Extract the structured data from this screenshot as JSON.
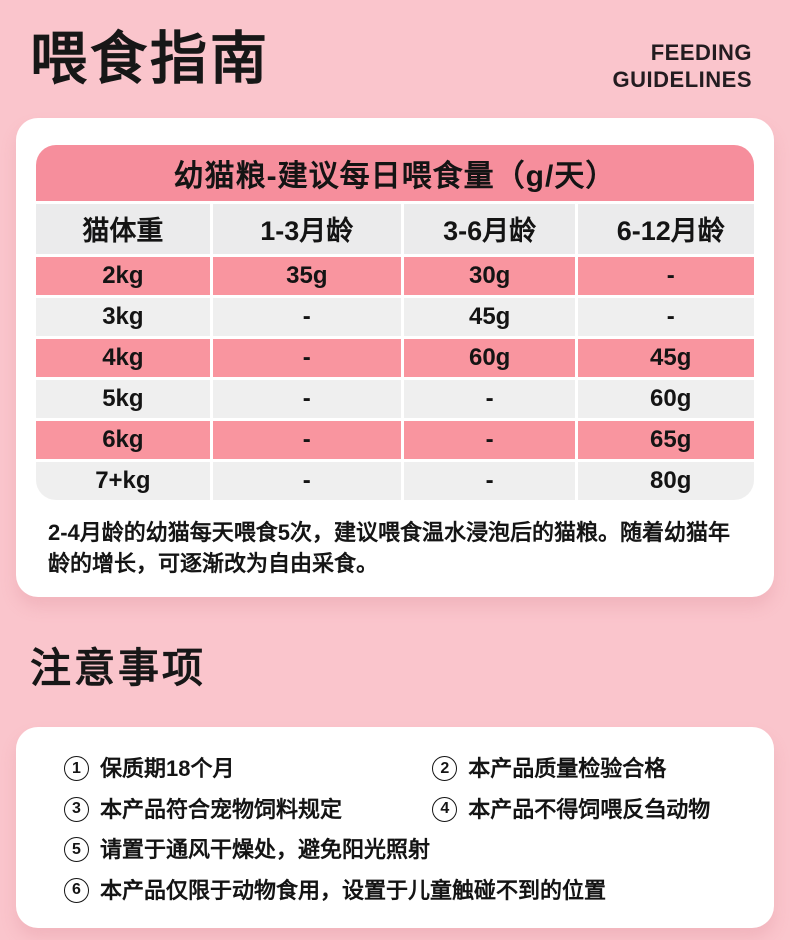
{
  "page": {
    "title": "喂食指南",
    "subtitle_en": {
      "line1": "FEEDING",
      "line2": "GUIDELINES"
    }
  },
  "feeding_table": {
    "title": "幼猫粮-建议每日喂食量（g/天）",
    "columns": [
      "猫体重",
      "1-3月龄",
      "3-6月龄",
      "6-12月龄"
    ],
    "rows": [
      [
        "2kg",
        "35g",
        "30g",
        "-"
      ],
      [
        "3kg",
        "-",
        "45g",
        "-"
      ],
      [
        "4kg",
        "-",
        "60g",
        "45g"
      ],
      [
        "5kg",
        "-",
        "-",
        "60g"
      ],
      [
        "6kg",
        "-",
        "-",
        "65g"
      ],
      [
        "7+kg",
        "-",
        "-",
        "80g"
      ]
    ],
    "note": "2-4月龄的幼猫每天喂食5次，建议喂食温水浸泡后的猫粮。随着幼猫年龄的增长，可逐渐改为自由采食。"
  },
  "notices": {
    "heading": "注意事项",
    "items": [
      {
        "num": "1",
        "text": "保质期18个月"
      },
      {
        "num": "2",
        "text": "本产品质量检验合格"
      },
      {
        "num": "3",
        "text": "本产品符合宠物饲料规定"
      },
      {
        "num": "4",
        "text": "本产品不得饲喂反刍动物"
      },
      {
        "num": "5",
        "text": "请置于通风干燥处，避免阳光照射"
      },
      {
        "num": "6",
        "text": "本产品仅限于动物食用，设置于儿童触碰不到的位置"
      }
    ]
  },
  "colors": {
    "background": "#FAC5CC",
    "card": "#FFFFFF",
    "table_title_pink": "#F68E9C",
    "row_pink": "#F9959F",
    "row_gray": "#EFEFEF",
    "column_header_gray": "#EBEBEC",
    "text": "#141414"
  }
}
